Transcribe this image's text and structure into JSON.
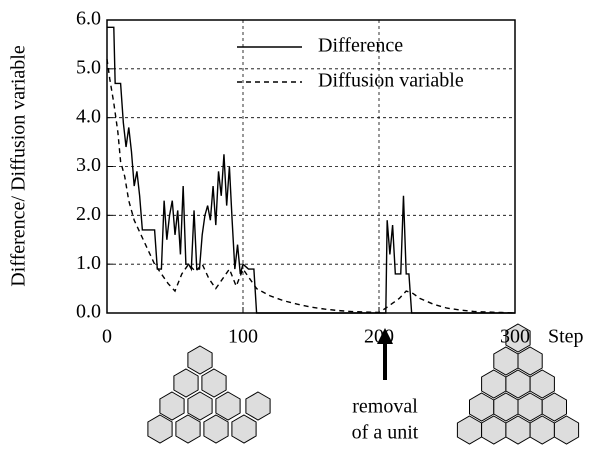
{
  "chart_data": {
    "type": "line",
    "y_label": "Difference/ Diffusion variable",
    "x_label": "Step",
    "annotations": [
      "removal",
      "of a unit"
    ],
    "xlim": [
      0,
      300
    ],
    "xticks": [
      0,
      100,
      200,
      300
    ],
    "ylim": [
      0,
      6
    ],
    "yticks": [
      {
        "value": 0,
        "label": "0.0"
      },
      {
        "value": 1,
        "label": "1.0"
      },
      {
        "value": 2,
        "label": "2.0"
      },
      {
        "value": 3,
        "label": "3.0"
      },
      {
        "value": 4,
        "label": "4.0"
      },
      {
        "value": 5,
        "label": "5.0"
      },
      {
        "value": 6,
        "label": "6.0"
      }
    ],
    "grid": true,
    "legend": "upper right",
    "series": [
      {
        "name": "Difference",
        "color": "#000000",
        "dash": "solid",
        "x": [
          0,
          5,
          6,
          10,
          12,
          14,
          16,
          18,
          20,
          22,
          24,
          26,
          30,
          35,
          37,
          40,
          42,
          44,
          46,
          48,
          50,
          52,
          54,
          56,
          58,
          60,
          62,
          64,
          66,
          68,
          70,
          72,
          74,
          76,
          78,
          80,
          82,
          84,
          86,
          88,
          90,
          92,
          94,
          96,
          98,
          100,
          104,
          108,
          110,
          205,
          206,
          208,
          210,
          212,
          216,
          218,
          220,
          222,
          224,
          300
        ],
        "values": [
          5.85,
          5.85,
          4.7,
          4.7,
          3.9,
          3.4,
          3.8,
          3.3,
          2.6,
          2.9,
          2.4,
          1.7,
          1.7,
          1.7,
          0.9,
          0.9,
          2.3,
          1.5,
          2.0,
          2.3,
          1.6,
          2.1,
          1.2,
          2.6,
          1.0,
          1.0,
          0.9,
          2.1,
          0.9,
          0.9,
          1.6,
          2.0,
          2.2,
          1.9,
          2.6,
          1.8,
          2.9,
          2.4,
          3.25,
          2.2,
          3.0,
          1.9,
          0.9,
          1.4,
          0.8,
          1.0,
          0.9,
          0.9,
          0,
          0,
          1.9,
          1.2,
          1.8,
          0.8,
          0.8,
          2.4,
          0.8,
          0.8,
          0,
          0
        ]
      },
      {
        "name": "Diffusion variable",
        "color": "#000000",
        "dash": "dashed",
        "x": [
          0,
          2,
          5,
          8,
          10,
          13,
          16,
          20,
          25,
          30,
          35,
          40,
          45,
          50,
          55,
          60,
          65,
          70,
          75,
          80,
          85,
          90,
          95,
          100,
          105,
          110,
          120,
          130,
          140,
          150,
          160,
          170,
          180,
          190,
          200,
          205,
          210,
          215,
          220,
          225,
          230,
          240,
          250,
          260,
          270,
          280,
          290,
          300
        ],
        "values": [
          5.2,
          4.8,
          4.3,
          3.7,
          3.1,
          2.8,
          2.3,
          1.9,
          1.6,
          1.3,
          1.0,
          0.8,
          0.6,
          0.45,
          0.8,
          1.0,
          0.85,
          1.0,
          0.7,
          0.5,
          0.7,
          0.9,
          0.55,
          0.9,
          0.7,
          0.5,
          0.35,
          0.25,
          0.18,
          0.12,
          0.08,
          0.05,
          0.03,
          0.02,
          0.01,
          0.1,
          0.2,
          0.3,
          0.45,
          0.4,
          0.3,
          0.18,
          0.1,
          0.06,
          0.03,
          0.02,
          0.01,
          0
        ]
      }
    ]
  }
}
